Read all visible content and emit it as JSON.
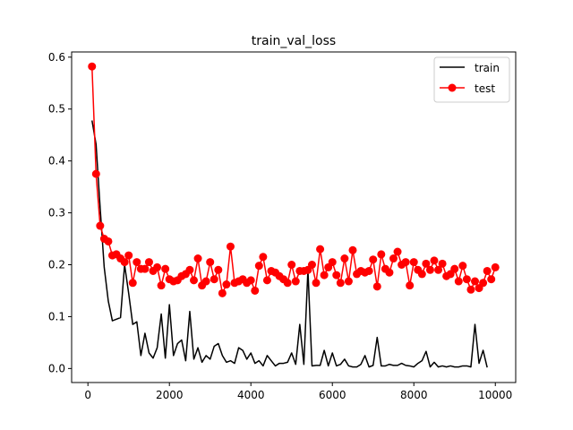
{
  "chart_data": {
    "type": "line",
    "title": "train_val_loss",
    "xlabel": "",
    "ylabel": "",
    "xlim": [
      -400,
      10500
    ],
    "ylim": [
      -0.027,
      0.61
    ],
    "x_ticks": [
      0,
      2000,
      4000,
      6000,
      8000,
      10000
    ],
    "x_tick_labels": [
      "0",
      "2000",
      "4000",
      "6000",
      "8000",
      "10000"
    ],
    "y_ticks": [
      0.0,
      0.1,
      0.2,
      0.3,
      0.4,
      0.5,
      0.6
    ],
    "y_tick_labels": [
      "0.0",
      "0.1",
      "0.2",
      "0.3",
      "0.4",
      "0.5",
      "0.6"
    ],
    "grid": false,
    "legend_position": "top-right",
    "series": [
      {
        "name": "train",
        "color": "#000000",
        "marker": "none",
        "x": [
          100,
          200,
          300,
          400,
          500,
          600,
          700,
          800,
          900,
          1000,
          1100,
          1200,
          1300,
          1400,
          1500,
          1600,
          1700,
          1800,
          1900,
          2000,
          2100,
          2200,
          2300,
          2400,
          2500,
          2600,
          2700,
          2800,
          2900,
          3000,
          3100,
          3200,
          3300,
          3400,
          3500,
          3600,
          3700,
          3800,
          3900,
          4000,
          4100,
          4200,
          4300,
          4400,
          4500,
          4600,
          4700,
          4800,
          4900,
          5000,
          5100,
          5200,
          5300,
          5400,
          5500,
          5600,
          5700,
          5800,
          5900,
          6000,
          6100,
          6200,
          6300,
          6400,
          6500,
          6600,
          6700,
          6800,
          6900,
          7000,
          7100,
          7200,
          7300,
          7400,
          7500,
          7600,
          7700,
          7800,
          7900,
          8000,
          8100,
          8200,
          8300,
          8400,
          8500,
          8600,
          8700,
          8800,
          8900,
          9000,
          9100,
          9200,
          9300,
          9400,
          9500,
          9600,
          9700,
          9800,
          9900,
          10000
        ],
        "y": [
          0.478,
          0.432,
          0.31,
          0.195,
          0.13,
          0.092,
          0.095,
          0.098,
          0.2,
          0.145,
          0.085,
          0.09,
          0.025,
          0.068,
          0.03,
          0.02,
          0.04,
          0.105,
          0.02,
          0.123,
          0.025,
          0.048,
          0.055,
          0.015,
          0.11,
          0.018,
          0.04,
          0.012,
          0.025,
          0.018,
          0.043,
          0.048,
          0.025,
          0.012,
          0.015,
          0.01,
          0.04,
          0.035,
          0.018,
          0.03,
          0.01,
          0.015,
          0.005,
          0.025,
          0.015,
          0.005,
          0.01,
          0.01,
          0.012,
          0.03,
          0.008,
          0.085,
          0.008,
          0.19,
          0.005,
          0.006,
          0.006,
          0.035,
          0.005,
          0.03,
          0.005,
          0.008,
          0.018,
          0.005,
          0.003,
          0.003,
          0.008,
          0.025,
          0.003,
          0.006,
          0.06,
          0.005,
          0.005,
          0.008,
          0.006,
          0.006,
          0.01,
          0.006,
          0.005,
          0.003,
          0.01,
          0.015,
          0.033,
          0.003,
          0.012,
          0.003,
          0.005,
          0.003,
          0.005,
          0.003,
          0.003,
          0.005,
          0.005,
          0.003,
          0.085,
          0.01,
          0.035,
          0.002,
          null,
          null
        ]
      },
      {
        "name": "test",
        "color": "#ff0000",
        "marker": "circle",
        "x": [
          100,
          200,
          300,
          400,
          500,
          600,
          700,
          800,
          900,
          1000,
          1100,
          1200,
          1300,
          1400,
          1500,
          1600,
          1700,
          1800,
          1900,
          2000,
          2100,
          2200,
          2300,
          2400,
          2500,
          2600,
          2700,
          2800,
          2900,
          3000,
          3100,
          3200,
          3300,
          3400,
          3500,
          3600,
          3700,
          3800,
          3900,
          4000,
          4100,
          4200,
          4300,
          4400,
          4500,
          4600,
          4700,
          4800,
          4900,
          5000,
          5100,
          5200,
          5300,
          5400,
          5500,
          5600,
          5700,
          5800,
          5900,
          6000,
          6100,
          6200,
          6300,
          6400,
          6500,
          6600,
          6700,
          6800,
          6900,
          7000,
          7100,
          7200,
          7300,
          7400,
          7500,
          7600,
          7700,
          7800,
          7900,
          8000,
          8100,
          8200,
          8300,
          8400,
          8500,
          8600,
          8700,
          8800,
          8900,
          9000,
          9100,
          9200,
          9300,
          9400,
          9500,
          9600,
          9700,
          9800,
          9900,
          10000
        ],
        "y": [
          0.582,
          0.375,
          0.275,
          0.25,
          0.245,
          0.218,
          0.22,
          0.212,
          0.205,
          0.218,
          0.165,
          0.205,
          0.192,
          0.192,
          0.205,
          0.188,
          0.195,
          0.16,
          0.192,
          0.172,
          0.168,
          0.17,
          0.178,
          0.182,
          0.19,
          0.17,
          0.212,
          0.16,
          0.168,
          0.205,
          0.172,
          0.19,
          0.145,
          0.162,
          0.235,
          0.165,
          0.168,
          0.172,
          0.165,
          0.17,
          0.15,
          0.198,
          0.215,
          0.17,
          0.188,
          0.185,
          0.178,
          0.172,
          0.165,
          0.2,
          0.168,
          0.188,
          0.188,
          0.19,
          0.2,
          0.165,
          0.23,
          0.18,
          0.195,
          0.205,
          0.18,
          0.165,
          0.212,
          0.168,
          0.228,
          0.182,
          0.188,
          0.185,
          0.188,
          0.21,
          0.158,
          0.22,
          0.192,
          0.185,
          0.212,
          0.225,
          0.2,
          0.205,
          0.16,
          0.205,
          0.19,
          0.182,
          0.202,
          0.19,
          0.208,
          0.19,
          0.202,
          0.178,
          0.182,
          0.192,
          0.168,
          0.198,
          0.172,
          0.152,
          0.168,
          0.155,
          0.165,
          0.188,
          0.172,
          0.195
        ]
      }
    ]
  }
}
